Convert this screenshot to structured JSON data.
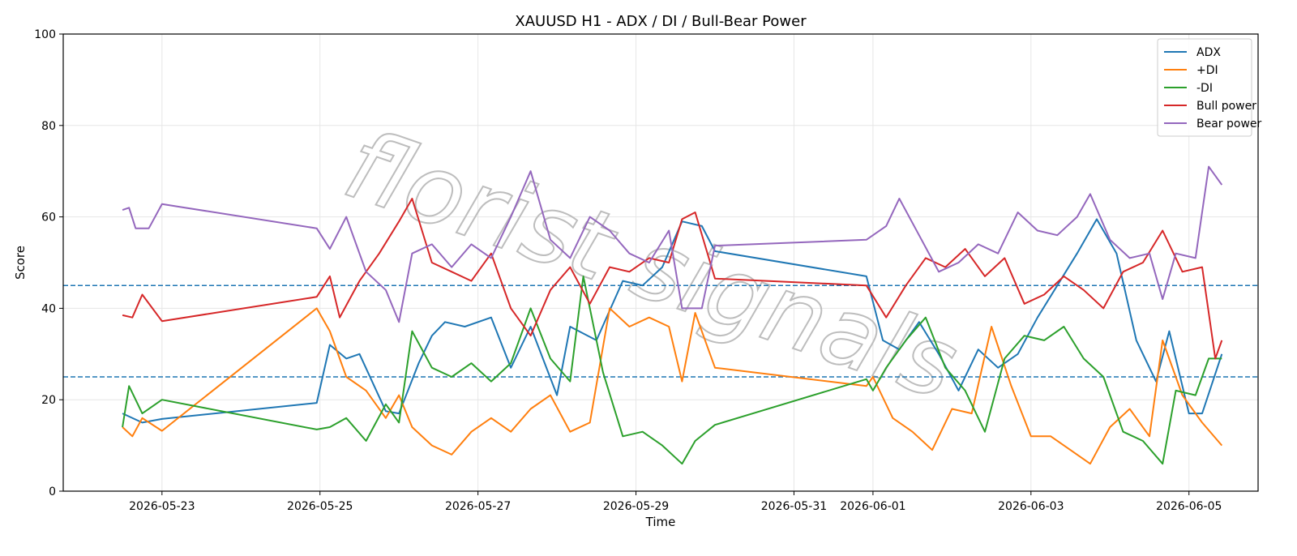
{
  "chart_data": {
    "type": "line",
    "title": "XAUUSD H1 - ADX / DI / Bull-Bear Power",
    "xlabel": "Time",
    "ylabel": "Score",
    "ylim": [
      0,
      100
    ],
    "xlim": [
      "2026-05-21 18:00",
      "2026-06-05 21:00"
    ],
    "yticks": [
      0,
      20,
      40,
      60,
      80,
      100
    ],
    "xticks": [
      "2026-05-23",
      "2026-05-25",
      "2026-05-27",
      "2026-05-29",
      "2026-05-31",
      "2026-06-01",
      "2026-06-03",
      "2026-06-05"
    ],
    "grid": true,
    "legend_position": "upper right",
    "watermark": "florist signals",
    "reference_lines": [
      {
        "y": 45,
        "style": "dashed",
        "color": "#1f77b4"
      },
      {
        "y": 25,
        "style": "dashed",
        "color": "#1f77b4"
      }
    ],
    "series": [
      {
        "name": "ADX",
        "color": "#1f77b4",
        "points": [
          [
            "2026-05-22 12:00",
            17
          ],
          [
            "2026-05-22 18:00",
            15
          ],
          [
            "2026-05-23 00:00",
            15.8
          ],
          [
            "2026-05-24 23:00",
            19.3
          ],
          [
            "2026-05-25 03:00",
            32
          ],
          [
            "2026-05-25 08:00",
            29
          ],
          [
            "2026-05-25 12:00",
            30
          ],
          [
            "2026-05-25 20:00",
            17.5
          ],
          [
            "2026-05-26 00:00",
            17
          ],
          [
            "2026-05-26 06:00",
            28
          ],
          [
            "2026-05-26 10:00",
            34
          ],
          [
            "2026-05-26 14:00",
            37
          ],
          [
            "2026-05-26 20:00",
            36
          ],
          [
            "2026-05-27 04:00",
            38
          ],
          [
            "2026-05-27 10:00",
            27
          ],
          [
            "2026-05-27 16:00",
            36
          ],
          [
            "2026-05-28 00:00",
            21
          ],
          [
            "2026-05-28 04:00",
            36
          ],
          [
            "2026-05-28 12:00",
            33
          ],
          [
            "2026-05-28 20:00",
            46
          ],
          [
            "2026-05-29 02:00",
            45
          ],
          [
            "2026-05-29 08:00",
            49
          ],
          [
            "2026-05-29 14:00",
            59
          ],
          [
            "2026-05-29 20:00",
            58
          ],
          [
            "2026-05-30 00:00",
            52.5
          ],
          [
            "2026-05-31 22:00",
            47
          ],
          [
            "2026-06-01 03:00",
            33
          ],
          [
            "2026-06-01 08:00",
            31
          ],
          [
            "2026-06-01 14:00",
            37
          ],
          [
            "2026-06-01 20:00",
            30
          ],
          [
            "2026-06-02 02:00",
            22
          ],
          [
            "2026-06-02 08:00",
            31
          ],
          [
            "2026-06-02 14:00",
            27
          ],
          [
            "2026-06-02 20:00",
            30
          ],
          [
            "2026-06-03 02:00",
            38
          ],
          [
            "2026-06-03 08:00",
            45
          ],
          [
            "2026-06-03 14:00",
            52
          ],
          [
            "2026-06-03 20:00",
            59.5
          ],
          [
            "2026-06-04 02:00",
            52
          ],
          [
            "2026-06-04 08:00",
            33
          ],
          [
            "2026-06-04 14:00",
            24
          ],
          [
            "2026-06-04 18:00",
            35
          ],
          [
            "2026-06-05 00:00",
            17
          ],
          [
            "2026-06-05 04:00",
            17
          ],
          [
            "2026-06-05 10:00",
            30
          ]
        ]
      },
      {
        "name": "+DI",
        "color": "#ff7f0e",
        "points": [
          [
            "2026-05-22 12:00",
            14
          ],
          [
            "2026-05-22 15:00",
            12
          ],
          [
            "2026-05-22 18:00",
            16
          ],
          [
            "2026-05-23 00:00",
            13.2
          ],
          [
            "2026-05-24 23:00",
            40
          ],
          [
            "2026-05-25 03:00",
            35
          ],
          [
            "2026-05-25 08:00",
            25
          ],
          [
            "2026-05-25 14:00",
            22
          ],
          [
            "2026-05-25 20:00",
            16
          ],
          [
            "2026-05-26 00:00",
            21
          ],
          [
            "2026-05-26 04:00",
            14
          ],
          [
            "2026-05-26 10:00",
            10
          ],
          [
            "2026-05-26 16:00",
            8
          ],
          [
            "2026-05-26 22:00",
            13
          ],
          [
            "2026-05-27 04:00",
            16
          ],
          [
            "2026-05-27 10:00",
            13
          ],
          [
            "2026-05-27 16:00",
            18
          ],
          [
            "2026-05-27 22:00",
            21
          ],
          [
            "2026-05-28 04:00",
            13
          ],
          [
            "2026-05-28 10:00",
            15
          ],
          [
            "2026-05-28 16:00",
            40
          ],
          [
            "2026-05-28 22:00",
            36
          ],
          [
            "2026-05-29 04:00",
            38
          ],
          [
            "2026-05-29 10:00",
            36
          ],
          [
            "2026-05-29 14:00",
            24
          ],
          [
            "2026-05-29 18:00",
            39
          ],
          [
            "2026-05-30 00:00",
            27
          ],
          [
            "2026-05-31 22:00",
            23
          ],
          [
            "2026-06-01 00:00",
            25
          ],
          [
            "2026-06-01 06:00",
            16
          ],
          [
            "2026-06-01 12:00",
            13
          ],
          [
            "2026-06-01 18:00",
            9
          ],
          [
            "2026-06-02 00:00",
            18
          ],
          [
            "2026-06-02 06:00",
            17
          ],
          [
            "2026-06-02 12:00",
            36
          ],
          [
            "2026-06-02 18:00",
            23
          ],
          [
            "2026-06-03 00:00",
            12
          ],
          [
            "2026-06-03 06:00",
            12
          ],
          [
            "2026-06-03 12:00",
            9
          ],
          [
            "2026-06-03 18:00",
            6
          ],
          [
            "2026-06-04 00:00",
            14
          ],
          [
            "2026-06-04 06:00",
            18
          ],
          [
            "2026-06-04 12:00",
            12
          ],
          [
            "2026-06-04 16:00",
            33
          ],
          [
            "2026-06-04 22:00",
            21
          ],
          [
            "2026-06-05 04:00",
            15
          ],
          [
            "2026-06-05 10:00",
            10
          ]
        ]
      },
      {
        "name": "-DI",
        "color": "#2ca02c",
        "points": [
          [
            "2026-05-22 12:00",
            14
          ],
          [
            "2026-05-22 14:00",
            23
          ],
          [
            "2026-05-22 18:00",
            17
          ],
          [
            "2026-05-23 00:00",
            20
          ],
          [
            "2026-05-24 23:00",
            13.5
          ],
          [
            "2026-05-25 03:00",
            14
          ],
          [
            "2026-05-25 08:00",
            16
          ],
          [
            "2026-05-25 14:00",
            11
          ],
          [
            "2026-05-25 20:00",
            19
          ],
          [
            "2026-05-26 00:00",
            15
          ],
          [
            "2026-05-26 04:00",
            35
          ],
          [
            "2026-05-26 10:00",
            27
          ],
          [
            "2026-05-26 16:00",
            25
          ],
          [
            "2026-05-26 22:00",
            28
          ],
          [
            "2026-05-27 04:00",
            24
          ],
          [
            "2026-05-27 10:00",
            28
          ],
          [
            "2026-05-27 16:00",
            40
          ],
          [
            "2026-05-27 22:00",
            29
          ],
          [
            "2026-05-28 04:00",
            24
          ],
          [
            "2026-05-28 08:00",
            47
          ],
          [
            "2026-05-28 14:00",
            26
          ],
          [
            "2026-05-28 20:00",
            12
          ],
          [
            "2026-05-29 02:00",
            13
          ],
          [
            "2026-05-29 08:00",
            10
          ],
          [
            "2026-05-29 14:00",
            6
          ],
          [
            "2026-05-29 18:00",
            11
          ],
          [
            "2026-05-30 00:00",
            14.5
          ],
          [
            "2026-05-31 22:00",
            24.5
          ],
          [
            "2026-06-01 00:00",
            22
          ],
          [
            "2026-06-01 04:00",
            27
          ],
          [
            "2026-06-01 10:00",
            33
          ],
          [
            "2026-06-01 16:00",
            38
          ],
          [
            "2026-06-01 22:00",
            27
          ],
          [
            "2026-06-02 04:00",
            22
          ],
          [
            "2026-06-02 10:00",
            13
          ],
          [
            "2026-06-02 16:00",
            29
          ],
          [
            "2026-06-02 22:00",
            34
          ],
          [
            "2026-06-03 04:00",
            33
          ],
          [
            "2026-06-03 10:00",
            36
          ],
          [
            "2026-06-03 16:00",
            29
          ],
          [
            "2026-06-03 22:00",
            25
          ],
          [
            "2026-06-04 04:00",
            13
          ],
          [
            "2026-06-04 10:00",
            11
          ],
          [
            "2026-06-04 16:00",
            6
          ],
          [
            "2026-06-04 20:00",
            22
          ],
          [
            "2026-06-05 02:00",
            21
          ],
          [
            "2026-06-05 06:00",
            29
          ],
          [
            "2026-06-05 10:00",
            29
          ]
        ]
      },
      {
        "name": "Bull power",
        "color": "#d62728",
        "points": [
          [
            "2026-05-22 12:00",
            38.5
          ],
          [
            "2026-05-22 15:00",
            38
          ],
          [
            "2026-05-22 18:00",
            43
          ],
          [
            "2026-05-23 00:00",
            37.2
          ],
          [
            "2026-05-24 23:00",
            42.5
          ],
          [
            "2026-05-25 03:00",
            47
          ],
          [
            "2026-05-25 06:00",
            38
          ],
          [
            "2026-05-25 12:00",
            46
          ],
          [
            "2026-05-25 18:00",
            52
          ],
          [
            "2026-05-26 00:00",
            59
          ],
          [
            "2026-05-26 04:00",
            64
          ],
          [
            "2026-05-26 10:00",
            50
          ],
          [
            "2026-05-26 16:00",
            48
          ],
          [
            "2026-05-26 22:00",
            46
          ],
          [
            "2026-05-27 04:00",
            52
          ],
          [
            "2026-05-27 10:00",
            40
          ],
          [
            "2026-05-27 16:00",
            34
          ],
          [
            "2026-05-27 22:00",
            44
          ],
          [
            "2026-05-28 04:00",
            49
          ],
          [
            "2026-05-28 10:00",
            41
          ],
          [
            "2026-05-28 16:00",
            49
          ],
          [
            "2026-05-28 22:00",
            48
          ],
          [
            "2026-05-29 04:00",
            51
          ],
          [
            "2026-05-29 10:00",
            50
          ],
          [
            "2026-05-29 14:00",
            59.5
          ],
          [
            "2026-05-29 18:00",
            61
          ],
          [
            "2026-05-30 00:00",
            46.5
          ],
          [
            "2026-05-31 22:00",
            45
          ],
          [
            "2026-06-01 04:00",
            38
          ],
          [
            "2026-06-01 10:00",
            45
          ],
          [
            "2026-06-01 16:00",
            51
          ],
          [
            "2026-06-01 22:00",
            49
          ],
          [
            "2026-06-02 04:00",
            53
          ],
          [
            "2026-06-02 10:00",
            47
          ],
          [
            "2026-06-02 16:00",
            51
          ],
          [
            "2026-06-02 22:00",
            41
          ],
          [
            "2026-06-03 04:00",
            43
          ],
          [
            "2026-06-03 10:00",
            47
          ],
          [
            "2026-06-03 16:00",
            44
          ],
          [
            "2026-06-03 22:00",
            40
          ],
          [
            "2026-06-04 04:00",
            48
          ],
          [
            "2026-06-04 10:00",
            50
          ],
          [
            "2026-06-04 16:00",
            57
          ],
          [
            "2026-06-04 22:00",
            48
          ],
          [
            "2026-06-05 04:00",
            49
          ],
          [
            "2026-06-05 08:00",
            29
          ],
          [
            "2026-06-05 10:00",
            33
          ]
        ]
      },
      {
        "name": "Bear power",
        "color": "#9467bd",
        "points": [
          [
            "2026-05-22 12:00",
            61.5
          ],
          [
            "2026-05-22 14:00",
            62
          ],
          [
            "2026-05-22 16:00",
            57.5
          ],
          [
            "2026-05-22 20:00",
            57.5
          ],
          [
            "2026-05-23 00:00",
            62.8
          ],
          [
            "2026-05-24 23:00",
            57.5
          ],
          [
            "2026-05-25 03:00",
            53
          ],
          [
            "2026-05-25 08:00",
            60
          ],
          [
            "2026-05-25 14:00",
            48
          ],
          [
            "2026-05-25 20:00",
            44
          ],
          [
            "2026-05-26 00:00",
            37
          ],
          [
            "2026-05-26 04:00",
            52
          ],
          [
            "2026-05-26 10:00",
            54
          ],
          [
            "2026-05-26 16:00",
            49
          ],
          [
            "2026-05-26 22:00",
            54
          ],
          [
            "2026-05-27 04:00",
            51
          ],
          [
            "2026-05-27 10:00",
            60
          ],
          [
            "2026-05-27 16:00",
            70
          ],
          [
            "2026-05-27 22:00",
            55
          ],
          [
            "2026-05-28 04:00",
            51
          ],
          [
            "2026-05-28 10:00",
            60
          ],
          [
            "2026-05-28 16:00",
            57
          ],
          [
            "2026-05-28 22:00",
            52
          ],
          [
            "2026-05-29 04:00",
            50
          ],
          [
            "2026-05-29 10:00",
            57
          ],
          [
            "2026-05-29 14:00",
            40
          ],
          [
            "2026-05-29 20:00",
            40
          ],
          [
            "2026-05-30 00:00",
            53.7
          ],
          [
            "2026-05-31 22:00",
            55
          ],
          [
            "2026-06-01 04:00",
            58
          ],
          [
            "2026-06-01 08:00",
            64
          ],
          [
            "2026-06-01 14:00",
            56
          ],
          [
            "2026-06-01 20:00",
            48
          ],
          [
            "2026-06-02 02:00",
            50
          ],
          [
            "2026-06-02 08:00",
            54
          ],
          [
            "2026-06-02 14:00",
            52
          ],
          [
            "2026-06-02 20:00",
            61
          ],
          [
            "2026-06-03 02:00",
            57
          ],
          [
            "2026-06-03 08:00",
            56
          ],
          [
            "2026-06-03 14:00",
            60
          ],
          [
            "2026-06-03 18:00",
            65
          ],
          [
            "2026-06-04 00:00",
            55
          ],
          [
            "2026-06-04 06:00",
            51
          ],
          [
            "2026-06-04 12:00",
            52
          ],
          [
            "2026-06-04 16:00",
            42
          ],
          [
            "2026-06-04 20:00",
            52
          ],
          [
            "2026-06-05 02:00",
            51
          ],
          [
            "2026-06-05 06:00",
            71
          ],
          [
            "2026-06-05 10:00",
            67
          ]
        ]
      }
    ]
  }
}
